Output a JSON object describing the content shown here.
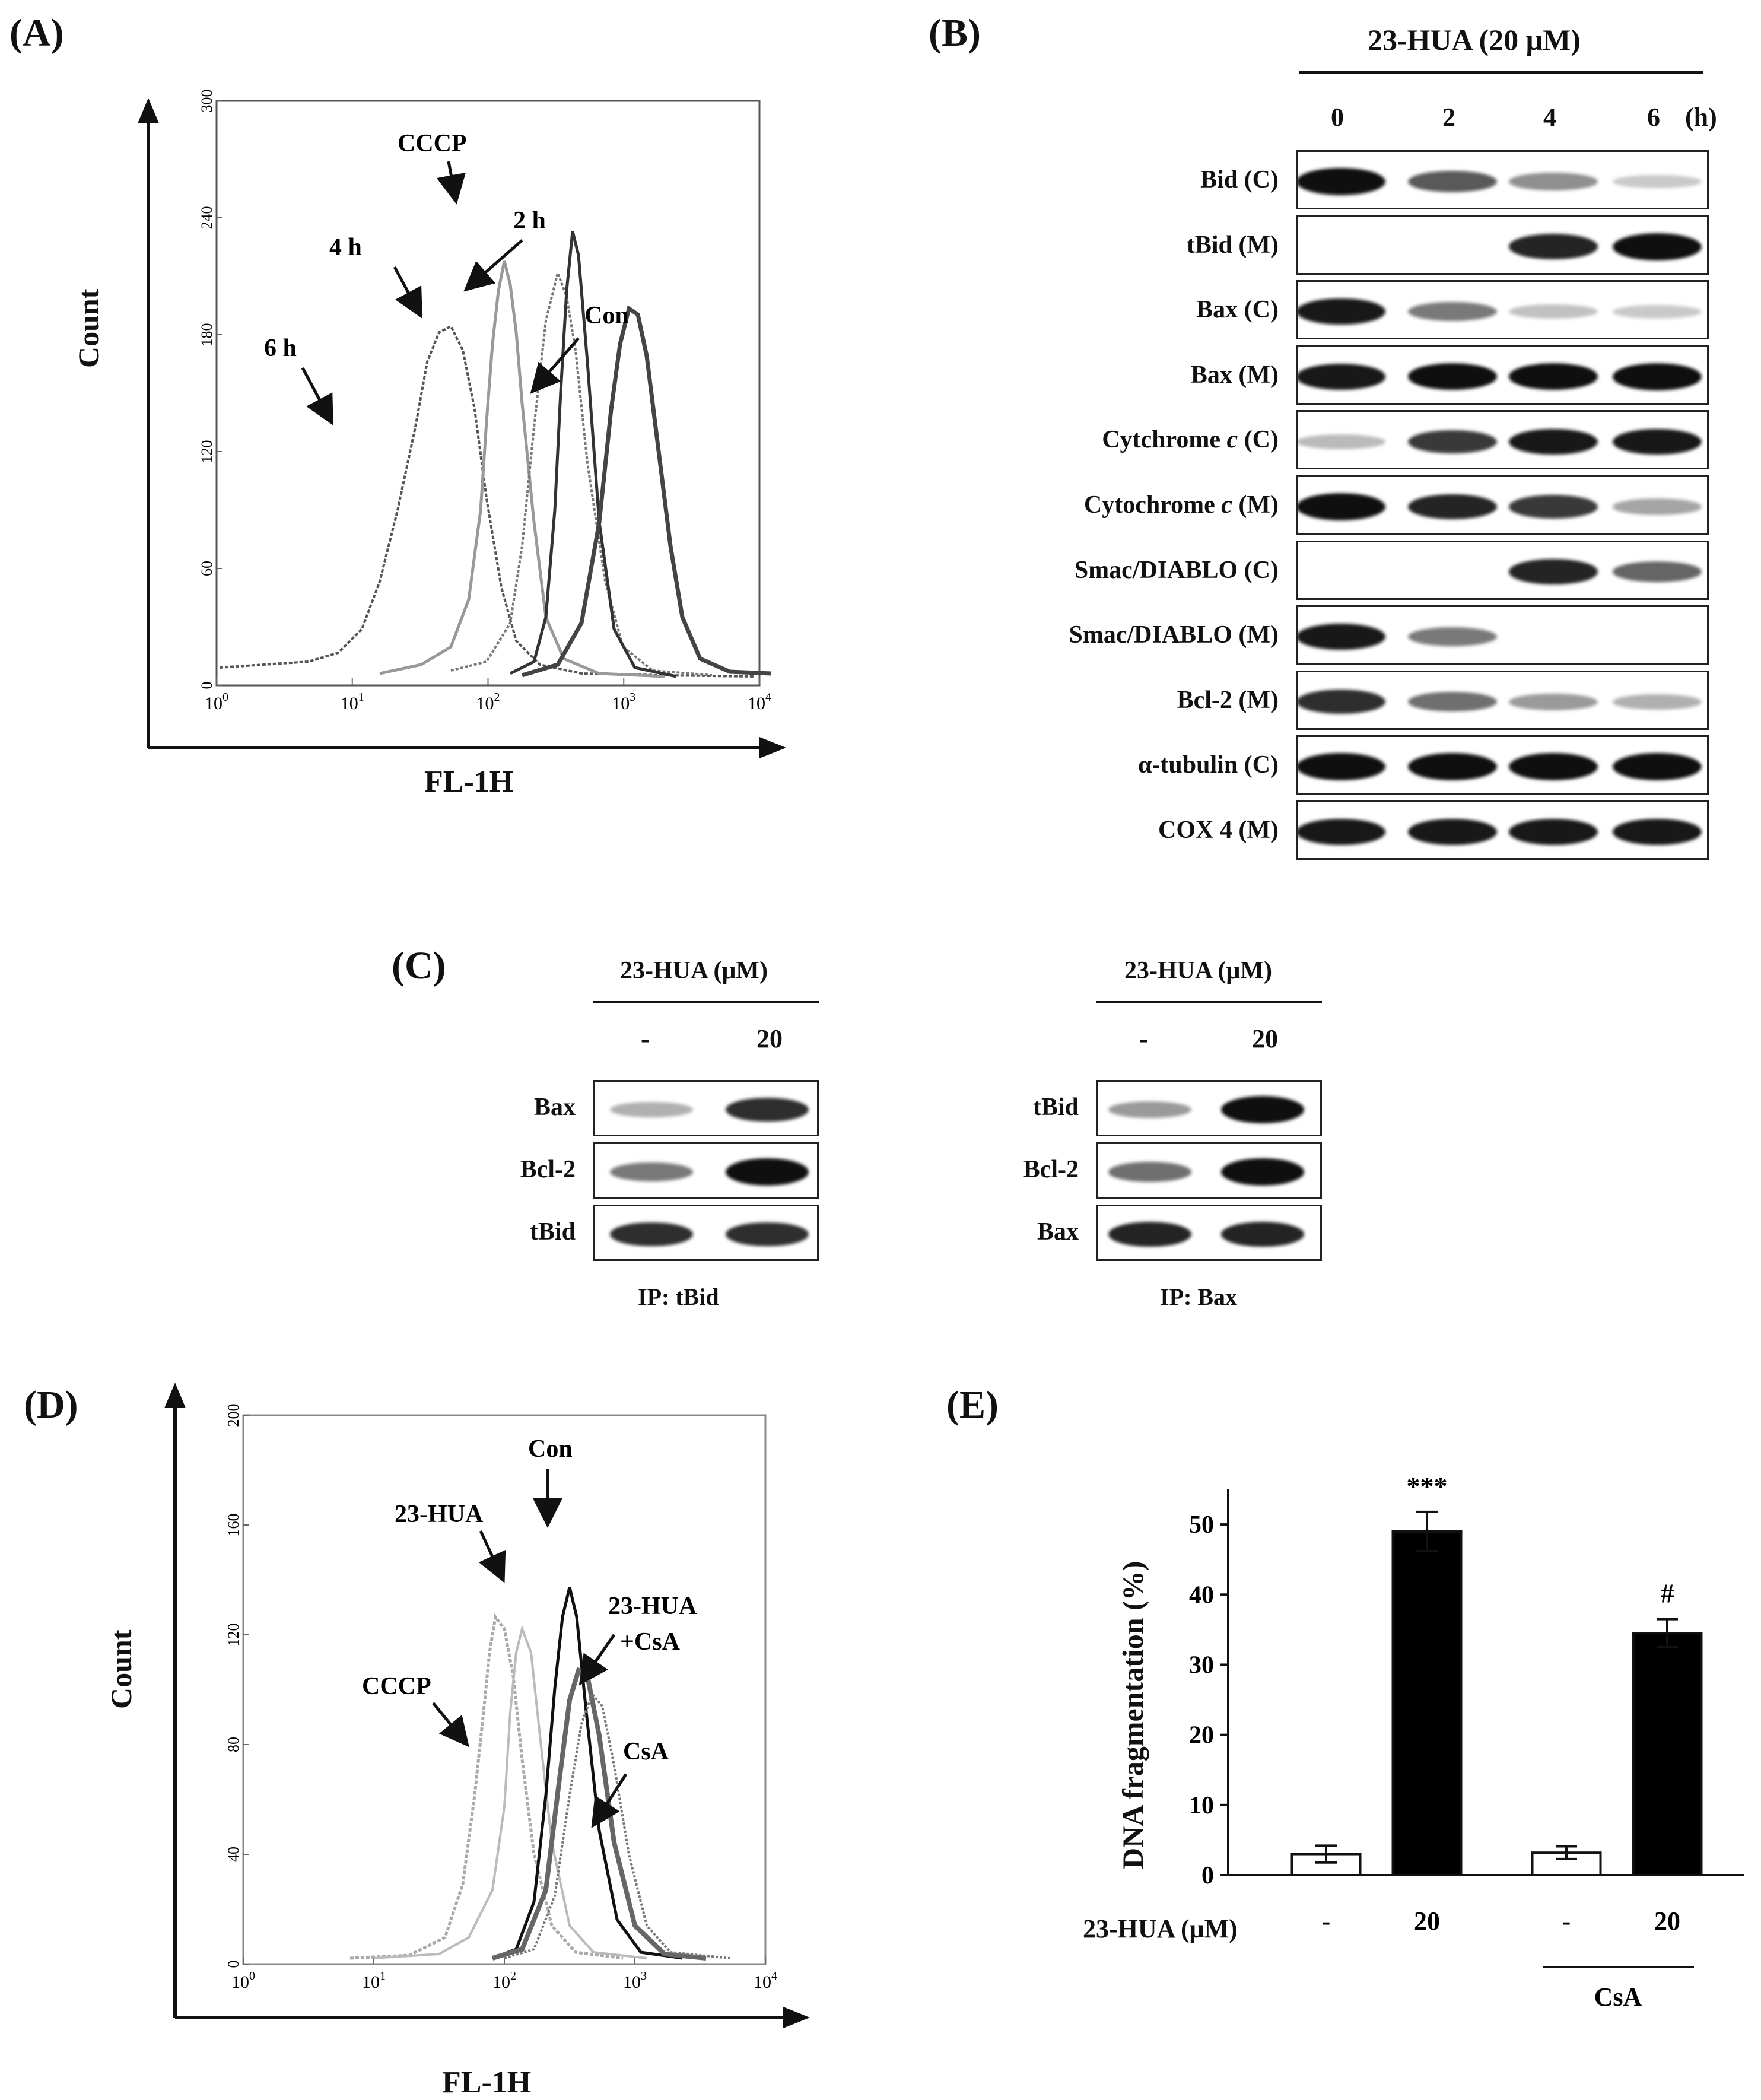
{
  "panels": {
    "A": "(A)",
    "B": "(B)",
    "C": "(C)",
    "D": "(D)",
    "E": "(E)"
  },
  "panelA": {
    "ylabel": "Count",
    "xlabel": "FL-1H",
    "yticks": [
      "0",
      "60",
      "120",
      "180",
      "240",
      "300"
    ],
    "xticks": [
      {
        "base": "10",
        "exp": "0"
      },
      {
        "base": "10",
        "exp": "1"
      },
      {
        "base": "10",
        "exp": "2"
      },
      {
        "base": "10",
        "exp": "3"
      },
      {
        "base": "10",
        "exp": "4"
      }
    ],
    "annotations": [
      "CCCP",
      "2 h",
      "4 h",
      "Con",
      "6 h"
    ]
  },
  "panelB": {
    "header": "23-HUA (20 μM)",
    "timepoints": [
      "0",
      "2",
      "4",
      "6"
    ],
    "time_unit": "(h)",
    "blots": [
      {
        "label_main": "Bid (C)",
        "italic": "",
        "label_rest": "",
        "intensities": [
          1.0,
          0.6,
          0.35,
          0.08
        ]
      },
      {
        "label_main": "tBid (M)",
        "italic": "",
        "label_rest": "",
        "intensities": [
          0,
          0,
          0.85,
          1.0
        ]
      },
      {
        "label_main": "Bax (C)",
        "italic": "",
        "label_rest": "",
        "intensities": [
          0.9,
          0.45,
          0.12,
          0.08
        ]
      },
      {
        "label_main": "Bax (M)",
        "italic": "",
        "label_rest": "",
        "intensities": [
          0.9,
          0.95,
          0.95,
          1.0
        ]
      },
      {
        "label_main": "Cytchrome ",
        "italic": "c",
        "label_rest": " (C)",
        "intensities": [
          0.15,
          0.75,
          0.9,
          0.9
        ]
      },
      {
        "label_main": "Cytochrome ",
        "italic": "c",
        "label_rest": " (M)",
        "intensities": [
          1.0,
          0.85,
          0.75,
          0.25
        ]
      },
      {
        "label_main": "Smac/DIABLO (C)",
        "italic": "",
        "label_rest": "",
        "intensities": [
          0,
          0,
          0.85,
          0.55
        ]
      },
      {
        "label_main": "Smac/DIABLO (M)",
        "italic": "",
        "label_rest": "",
        "intensities": [
          0.9,
          0.45,
          0,
          0
        ]
      },
      {
        "label_main": "Bcl-2 (M)",
        "italic": "",
        "label_rest": "",
        "intensities": [
          0.8,
          0.5,
          0.3,
          0.2
        ]
      },
      {
        "label_main": "α-tubulin (C)",
        "italic": "",
        "label_rest": "",
        "intensities": [
          1.0,
          1.0,
          1.0,
          1.0
        ]
      },
      {
        "label_main": "COX 4 (M)",
        "italic": "",
        "label_rest": "",
        "intensities": [
          0.9,
          0.9,
          0.9,
          0.9
        ]
      }
    ]
  },
  "panelC": {
    "left": {
      "header": "23-HUA (μM)",
      "conds": [
        "-",
        "20"
      ],
      "ip": "IP: tBid",
      "blots": [
        {
          "label": "Bax",
          "intensities": [
            0.2,
            0.8
          ]
        },
        {
          "label": "Bcl-2",
          "intensities": [
            0.45,
            1.0
          ]
        },
        {
          "label": "tBid",
          "intensities": [
            0.8,
            0.8
          ]
        }
      ]
    },
    "right": {
      "header": "23-HUA (μM)",
      "conds": [
        "-",
        "20"
      ],
      "ip": "IP: Bax",
      "blots": [
        {
          "label": "tBid",
          "intensities": [
            0.3,
            1.0
          ]
        },
        {
          "label": "Bcl-2",
          "intensities": [
            0.5,
            1.0
          ]
        },
        {
          "label": "Bax",
          "intensities": [
            0.85,
            0.85
          ]
        }
      ]
    }
  },
  "panelD": {
    "ylabel": "Count",
    "xlabel": "FL-1H",
    "yticks": [
      "0",
      "40",
      "80",
      "120",
      "160",
      "200"
    ],
    "xticks": [
      {
        "base": "10",
        "exp": "0"
      },
      {
        "base": "10",
        "exp": "1"
      },
      {
        "base": "10",
        "exp": "2"
      },
      {
        "base": "10",
        "exp": "3"
      },
      {
        "base": "10",
        "exp": "4"
      }
    ],
    "annotations": [
      "Con",
      "23-HUA",
      "23-HUA",
      "+CsA",
      "CCCP",
      "CsA"
    ]
  },
  "chart_data": {
    "type": "bar",
    "ylabel": "DNA fragmentation (%)",
    "ylim": [
      0,
      50
    ],
    "yticks": [
      "0",
      "10",
      "20",
      "30",
      "40",
      "50"
    ],
    "x_row_label": "23-HUA (μM)",
    "categories": [
      "-",
      "20",
      "-",
      "20"
    ],
    "group_label": "CsA",
    "values": [
      3,
      49,
      3.2,
      34.5
    ],
    "errors": [
      1.2,
      2.8,
      0.9,
      2.0
    ],
    "colors": [
      "#ffffff",
      "#000000",
      "#ffffff",
      "#000000"
    ],
    "significance": [
      "",
      "***",
      "",
      "#"
    ]
  }
}
